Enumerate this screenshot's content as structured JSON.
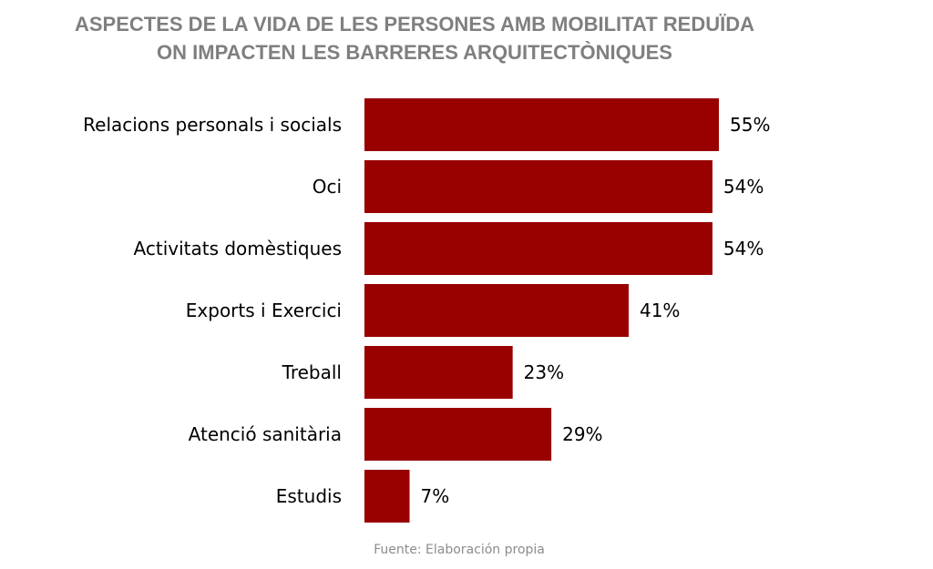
{
  "chart_data": {
    "type": "bar",
    "orientation": "horizontal",
    "title": [
      "ASPECTES DE LA VIDA DE LES PERSONES AMB MOBILITAT REDUÏDA",
      "ON IMPACTEN LES BARRERES ARQUITECTÒNIQUES"
    ],
    "categories": [
      "Relacions personals i socials",
      "Oci",
      "Activitats domèstiques",
      "Exports i Exercici",
      "Treball",
      "Atenció sanitària",
      "Estudis"
    ],
    "values": [
      55,
      54,
      54,
      41,
      23,
      29,
      7
    ],
    "value_labels": [
      "55%",
      "54%",
      "54%",
      "41%",
      "23%",
      "29%",
      "7%"
    ],
    "unit": "%",
    "xlim": [
      0,
      55
    ],
    "grid": false,
    "legend": false,
    "source": "Fuente: Elaboración propia",
    "colors": {
      "bar": "#990000",
      "title": "#7f7f7f",
      "text": "#000000",
      "source": "#8c8c8c"
    }
  }
}
